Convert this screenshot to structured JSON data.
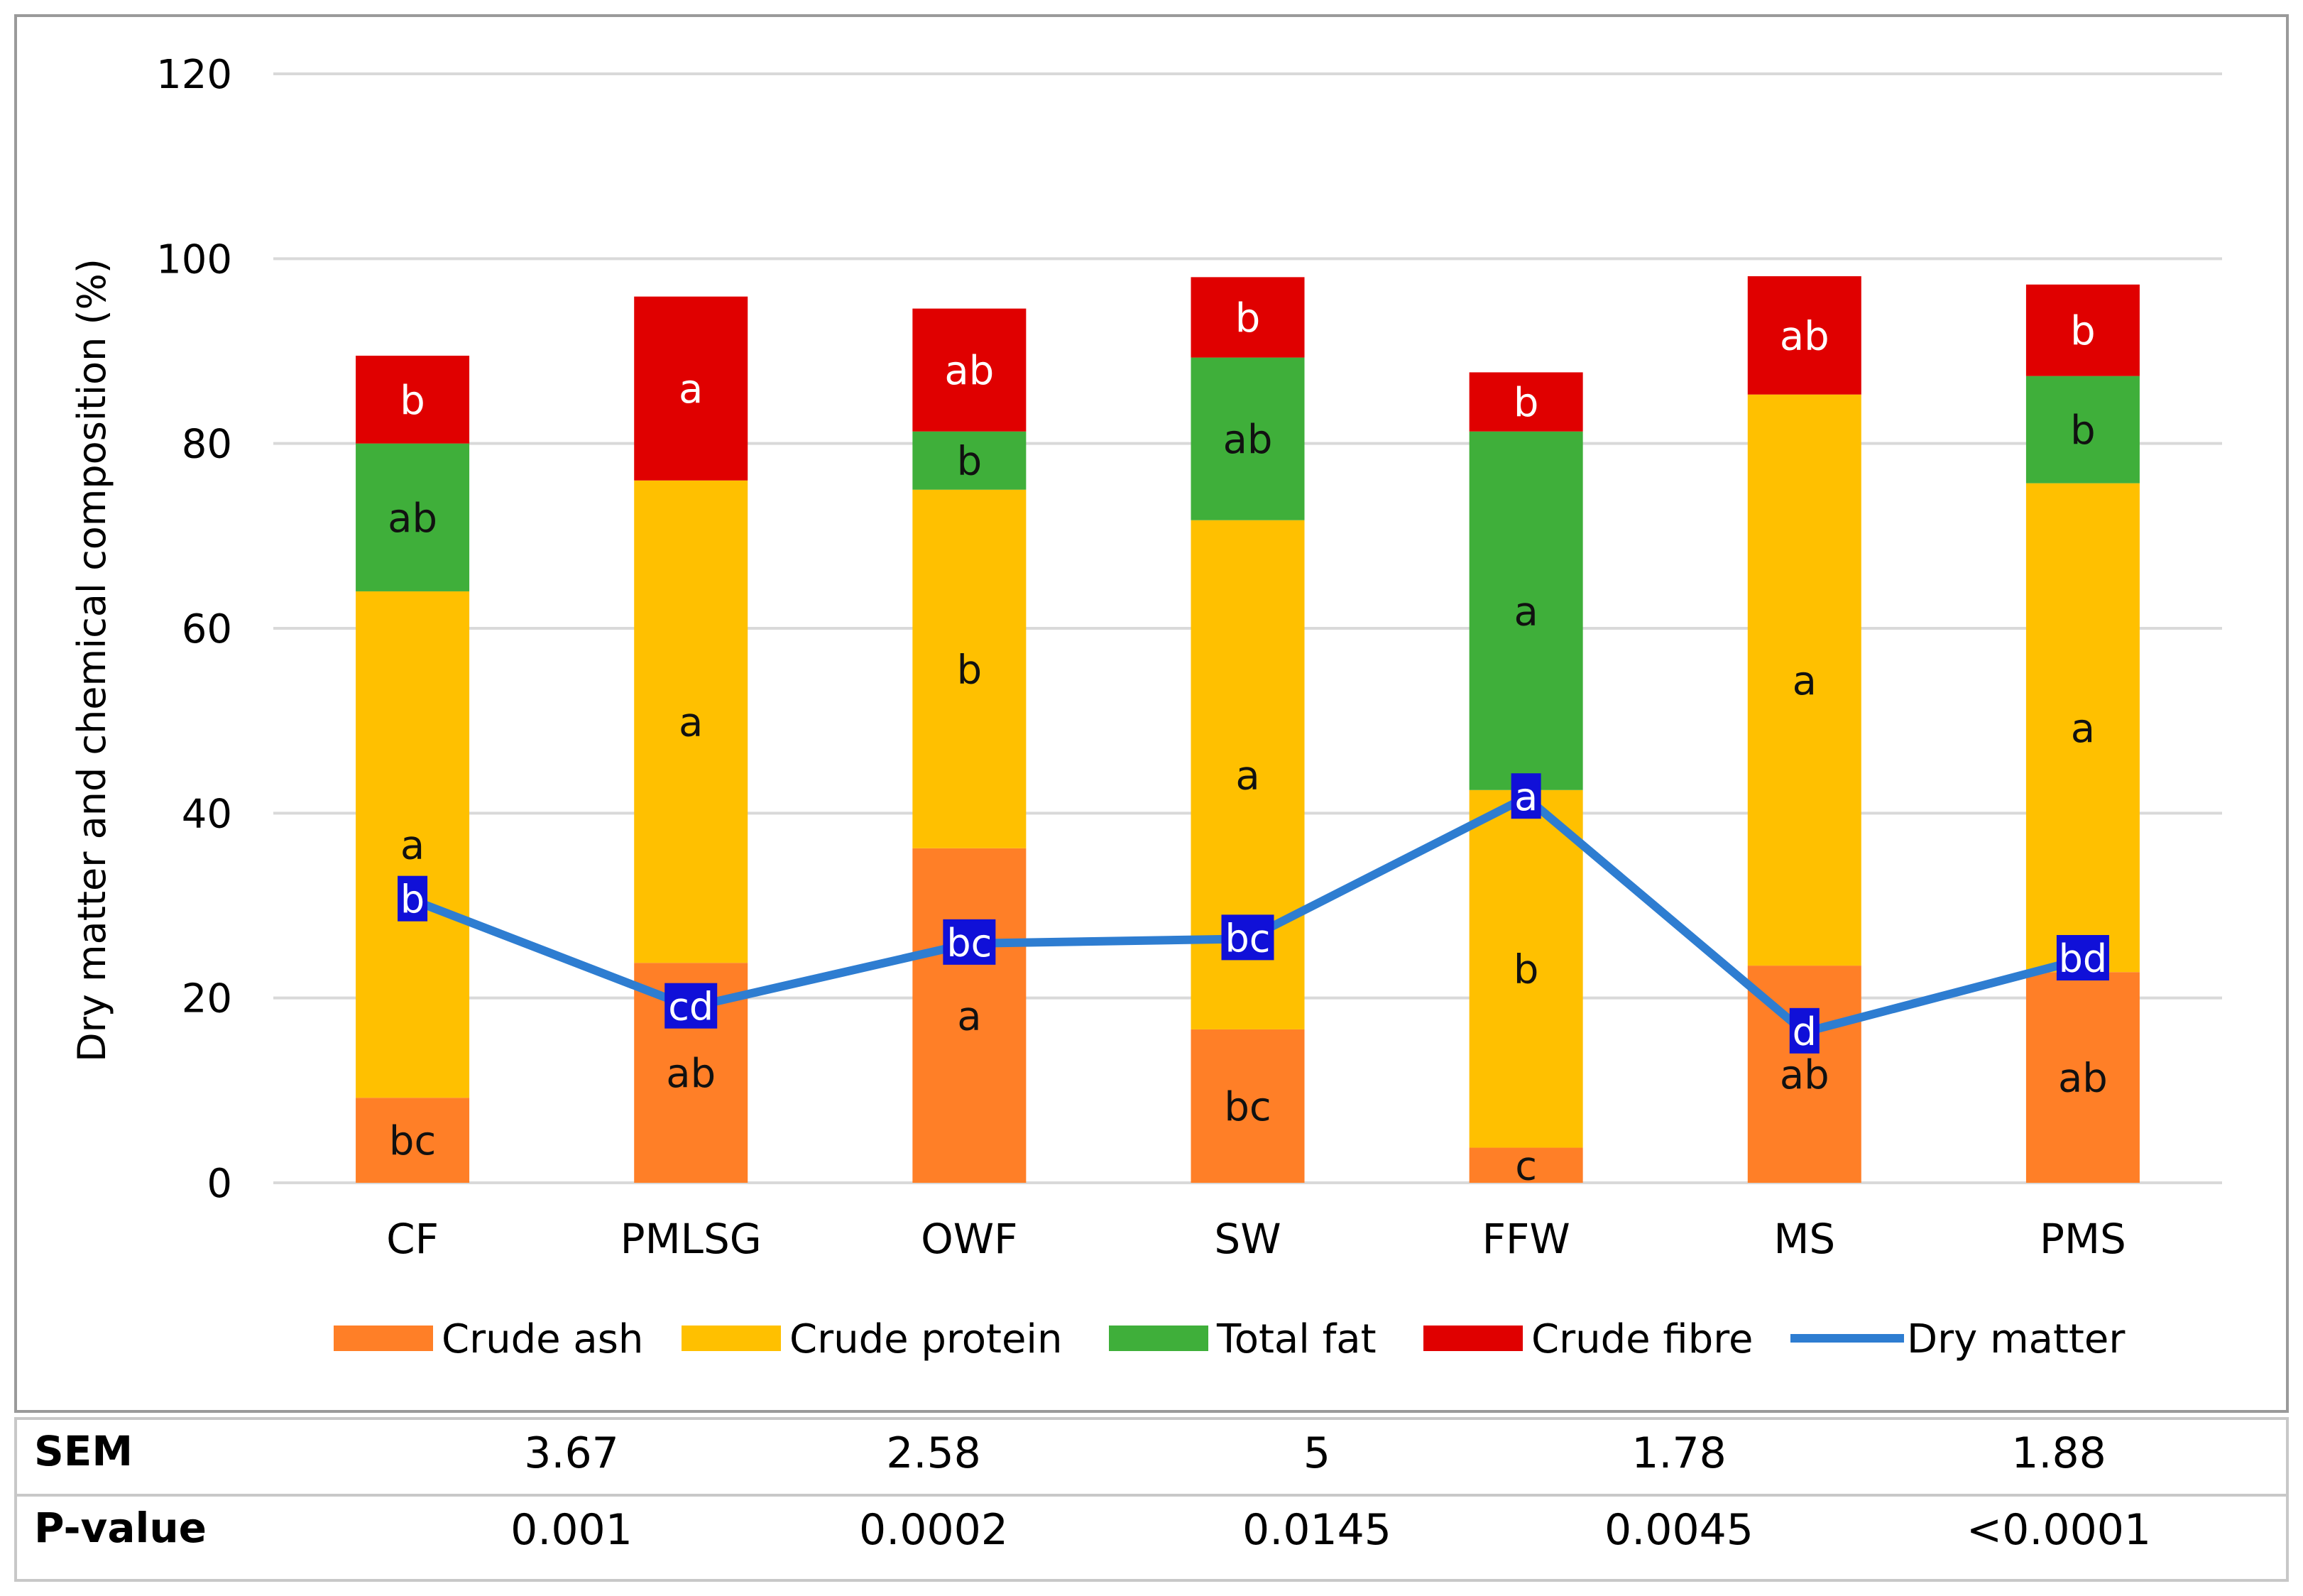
{
  "chart_data": {
    "type": "bar",
    "stacked": true,
    "title": "",
    "xlabel": "",
    "ylabel": "Dry matter and chemical composition (%)",
    "ylim": [
      0,
      120
    ],
    "yticks": [
      0,
      20,
      40,
      60,
      80,
      100,
      120
    ],
    "categories": [
      "CF",
      "PMLSG",
      "OWF",
      "SW",
      "FFW",
      "MS",
      "PMS"
    ],
    "series": [
      {
        "name": "Crude ash",
        "color": "#FF7F27",
        "values": [
          9.2,
          23.8,
          36.2,
          16.6,
          3.8,
          23.5,
          22.8
        ],
        "letters": [
          "bc",
          "ab",
          "a",
          "bc",
          "c",
          "ab",
          "ab"
        ]
      },
      {
        "name": "Crude protein",
        "color": "#FFC000",
        "values": [
          54.8,
          52.2,
          38.8,
          55.1,
          38.7,
          61.8,
          52.9
        ],
        "letters": [
          "a",
          "a",
          "b",
          "a",
          "b",
          "a",
          "a"
        ]
      },
      {
        "name": "Total fat",
        "color": "#3FAF3A",
        "values": [
          16.0,
          0,
          6.3,
          17.6,
          38.8,
          0,
          11.6
        ],
        "letters": [
          "ab",
          "",
          "b",
          "ab",
          "a",
          "",
          "b"
        ]
      },
      {
        "name": "Crude fibre",
        "color": "#E00000",
        "values": [
          9.5,
          19.9,
          13.3,
          8.7,
          6.4,
          12.8,
          9.9
        ],
        "letters": [
          "b",
          "a",
          "ab",
          "b",
          "b",
          "ab",
          "b"
        ]
      }
    ],
    "line": {
      "name": "Dry matter",
      "color": "#2E7DD1",
      "values": [
        30.6,
        19.0,
        25.9,
        26.4,
        41.7,
        16.3,
        24.2
      ],
      "letters": [
        "b",
        "cd",
        "bc",
        "bc",
        "a",
        "d",
        "bd"
      ]
    },
    "grid": true,
    "legend": "bottom"
  },
  "table": {
    "rows": [
      {
        "label": "SEM",
        "values": [
          "3.67",
          "2.58",
          "5",
          "1.78",
          "1.88"
        ]
      },
      {
        "label": "P-value",
        "values": [
          "0.001",
          "0.0002",
          "0.0145",
          "0.0045",
          "<0.0001"
        ]
      }
    ]
  }
}
